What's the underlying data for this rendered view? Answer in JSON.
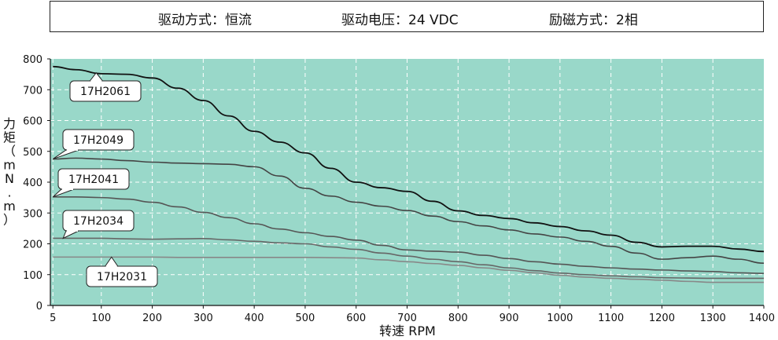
{
  "header": {
    "drive_mode": "驱动方式：恒流",
    "drive_voltage": "驱动电压：24 VDC",
    "excitation_mode": "励磁方式：2相"
  },
  "colors": {
    "plot_background": "#99d8c9",
    "grid": "#ffffff",
    "series_17H2061": "#111111",
    "series_17H2049": "#444444",
    "series_17H2041": "#555555",
    "series_17H2034": "#666666",
    "series_17H2031": "#888888"
  },
  "chart_data": {
    "type": "line",
    "xlabel": "转速 RPM",
    "ylabel": "力矩（mN.m）",
    "ylabel_chars": [
      "力",
      "矩",
      "（",
      "m",
      "N",
      ".",
      "m",
      "）"
    ],
    "xlim": [
      0,
      1400
    ],
    "ylim": [
      0,
      800
    ],
    "xticks": [
      5,
      100,
      200,
      300,
      400,
      500,
      600,
      700,
      800,
      900,
      1000,
      1100,
      1200,
      1300,
      1400
    ],
    "xtick_labels": [
      "5",
      "100",
      "200",
      "300",
      "400",
      "500",
      "600",
      "700",
      "800",
      "900",
      "1000",
      "1100",
      "1200",
      "1300",
      "1400"
    ],
    "yticks": [
      0,
      100,
      200,
      300,
      400,
      500,
      600,
      700,
      800
    ],
    "ytick_labels": [
      "0",
      "100",
      "200",
      "300",
      "400",
      "500",
      "600",
      "700",
      "800"
    ],
    "grid": true,
    "series": [
      {
        "name": "17H2061",
        "x": [
          5,
          50,
          100,
          150,
          200,
          250,
          300,
          350,
          400,
          450,
          500,
          550,
          600,
          650,
          700,
          750,
          800,
          850,
          900,
          950,
          1000,
          1050,
          1100,
          1150,
          1200,
          1250,
          1300,
          1350,
          1400
        ],
        "y": [
          775,
          765,
          752,
          750,
          738,
          705,
          665,
          615,
          565,
          530,
          495,
          445,
          400,
          382,
          370,
          338,
          307,
          292,
          282,
          268,
          256,
          242,
          228,
          205,
          190,
          192,
          192,
          183,
          175
        ]
      },
      {
        "name": "17H2049",
        "x": [
          5,
          50,
          100,
          150,
          200,
          250,
          300,
          350,
          400,
          450,
          500,
          550,
          600,
          650,
          700,
          750,
          800,
          850,
          900,
          950,
          1000,
          1050,
          1100,
          1150,
          1200,
          1250,
          1300,
          1350,
          1400
        ],
        "y": [
          475,
          478,
          475,
          470,
          465,
          462,
          460,
          458,
          450,
          420,
          380,
          355,
          335,
          322,
          308,
          290,
          272,
          258,
          245,
          232,
          222,
          208,
          192,
          170,
          150,
          155,
          160,
          150,
          137
        ]
      },
      {
        "name": "17H2041",
        "x": [
          5,
          50,
          100,
          150,
          200,
          250,
          300,
          350,
          400,
          450,
          500,
          550,
          600,
          650,
          700,
          750,
          800,
          850,
          900,
          950,
          1000,
          1050,
          1100,
          1150,
          1200,
          1250,
          1300,
          1350,
          1400
        ],
        "y": [
          352,
          352,
          350,
          345,
          335,
          320,
          302,
          285,
          265,
          248,
          236,
          224,
          212,
          195,
          180,
          176,
          173,
          163,
          152,
          142,
          134,
          127,
          122,
          118,
          115,
          112,
          110,
          106,
          104
        ]
      },
      {
        "name": "17H2034",
        "x": [
          5,
          50,
          100,
          150,
          200,
          250,
          300,
          350,
          400,
          450,
          500,
          550,
          600,
          650,
          700,
          750,
          800,
          850,
          900,
          950,
          1000,
          1050,
          1100,
          1150,
          1200,
          1250,
          1300,
          1350,
          1400
        ],
        "y": [
          218,
          218,
          218,
          216,
          215,
          216,
          217,
          213,
          208,
          203,
          200,
          190,
          182,
          170,
          160,
          150,
          142,
          132,
          122,
          113,
          105,
          100,
          96,
          93,
          90,
          89,
          88,
          88,
          88
        ]
      },
      {
        "name": "17H2031",
        "x": [
          5,
          50,
          100,
          150,
          200,
          250,
          300,
          350,
          400,
          450,
          500,
          550,
          600,
          650,
          700,
          750,
          800,
          850,
          900,
          950,
          1000,
          1050,
          1100,
          1150,
          1200,
          1250,
          1300,
          1350,
          1400
        ],
        "y": [
          157,
          157,
          157,
          157,
          157,
          156,
          156,
          156,
          156,
          156,
          156,
          155,
          154,
          148,
          142,
          136,
          130,
          122,
          114,
          106,
          98,
          92,
          88,
          85,
          82,
          78,
          75,
          75,
          75
        ]
      }
    ],
    "callouts": [
      {
        "series": "17H2061",
        "label": "17H2061",
        "anchor_x": 90,
        "anchor_y": 755
      },
      {
        "series": "17H2049",
        "label": "17H2049",
        "anchor_x": 5,
        "anchor_y": 475
      },
      {
        "series": "17H2041",
        "label": "17H2041",
        "anchor_x": 5,
        "anchor_y": 352
      },
      {
        "series": "17H2034",
        "label": "17H2034",
        "anchor_x": 25,
        "anchor_y": 218
      },
      {
        "series": "17H2031",
        "label": "17H2031",
        "anchor_x": 120,
        "anchor_y": 157
      }
    ]
  }
}
